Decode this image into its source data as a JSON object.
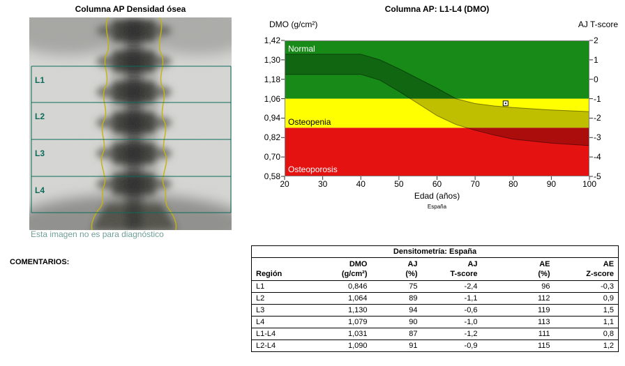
{
  "left_panel": {
    "title": "Columna AP Densidad ósea",
    "regions": [
      "L1",
      "L2",
      "L3",
      "L4"
    ],
    "disclaimer": "Esta imagen no es para diagnóstico",
    "comments_label": "COMENTARIOS:",
    "accent_color": "#0d6b5c"
  },
  "chart": {
    "title": "Columna AP: L1-L4 (DMO)",
    "y_left_label": "DMO (g/cm²)",
    "y_right_label": "AJ T-score",
    "x_label": "Edad (años)",
    "source_label": "España"
  },
  "chart_data": {
    "type": "line",
    "title": "Columna AP: L1-L4 (DMO)",
    "xlabel": "Edad (años)",
    "ylabel_left": "DMO (g/cm²)",
    "ylabel_right": "AJ T-score",
    "xlim": [
      20,
      100
    ],
    "ylim_dmo": [
      0.58,
      1.42
    ],
    "ylim_tscore": [
      -5,
      2
    ],
    "x_ticks": [
      20,
      30,
      40,
      50,
      60,
      70,
      80,
      90,
      100
    ],
    "y_ticks_dmo": [
      "1,42",
      "1,30",
      "1,18",
      "1,06",
      "0,94",
      "0,82",
      "0,70",
      "0,58"
    ],
    "y_ticks_tscore": [
      2,
      1,
      0,
      -1,
      -2,
      -3,
      -4,
      -5
    ],
    "zones": [
      {
        "label": "Normal",
        "dmo_min": 1.06,
        "dmo_max": 1.42,
        "color": "#178a17",
        "label_color": "#ffffff"
      },
      {
        "label": "Osteopenia",
        "dmo_min": 0.88,
        "dmo_max": 1.06,
        "color": "#ffff00",
        "label_color": "#000000"
      },
      {
        "label": "Osteoporosis",
        "dmo_min": 0.58,
        "dmo_max": 0.88,
        "color": "#e51212",
        "label_color": "#ffffff"
      }
    ],
    "reference_band": {
      "x": [
        20,
        40,
        45,
        50,
        55,
        60,
        65,
        70,
        75,
        80,
        90,
        100
      ],
      "upper": [
        1.335,
        1.335,
        1.3,
        1.245,
        1.185,
        1.125,
        1.06,
        1.03,
        1.015,
        1.005,
        0.99,
        0.98
      ],
      "lower": [
        1.21,
        1.21,
        1.175,
        1.105,
        1.03,
        0.955,
        0.9,
        0.865,
        0.835,
        0.81,
        0.785,
        0.77
      ]
    },
    "patient_point": {
      "age": 78,
      "dmo": 1.031
    }
  },
  "table": {
    "title": "Densitometría: España",
    "columns": [
      {
        "l1": "",
        "l2": "Región"
      },
      {
        "l1": "DMO",
        "l2": "(g/cm²)"
      },
      {
        "l1": "AJ",
        "l2": "(%)"
      },
      {
        "l1": "AJ",
        "l2": "T-score"
      },
      {
        "l1": "AE",
        "l2": "(%)"
      },
      {
        "l1": "AE",
        "l2": "Z-score"
      }
    ],
    "rows": [
      {
        "cells": [
          "L1",
          "0,846",
          "75",
          "-2,4",
          "96",
          "-0,3"
        ]
      },
      {
        "cells": [
          "L2",
          "1,064",
          "89",
          "-1,1",
          "112",
          "0,9"
        ]
      },
      {
        "cells": [
          "L3",
          "1,130",
          "94",
          "-0,6",
          "119",
          "1,5"
        ]
      },
      {
        "cells": [
          "L4",
          "1,079",
          "90",
          "-1,0",
          "113",
          "1,1"
        ]
      },
      {
        "cells": [
          "L1-L4",
          "1,031",
          "87",
          "-1,2",
          "111",
          "0,8"
        ]
      },
      {
        "cells": [
          "L2-L4",
          "1,090",
          "91",
          "-0,9",
          "115",
          "1,2"
        ]
      }
    ]
  }
}
